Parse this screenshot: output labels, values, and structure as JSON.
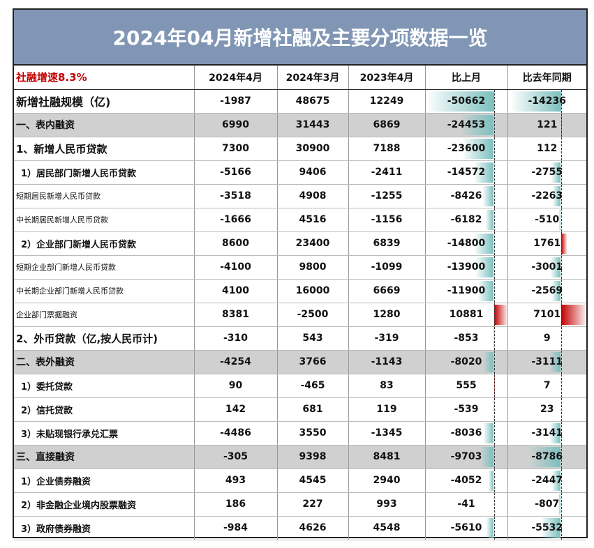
{
  "title": "2024年04月新增社融及主要分项数据一览",
  "headers": [
    "社融增速8.3%",
    "2024年4月",
    "2024年3月",
    "2023年4月",
    "比上月",
    "比去年同期"
  ],
  "rows": [
    {
      "label": "新增社融规模（亿)",
      "style": "big",
      "values": [
        -1987,
        48675,
        12249,
        -50662,
        -14236
      ]
    },
    {
      "label": "一、表内融资",
      "style": "grey",
      "values": [
        6990,
        31443,
        6869,
        -24453,
        121
      ]
    },
    {
      "label": "1、新增人民币贷款",
      "style": "l1",
      "values": [
        7300,
        30900,
        7188,
        -23600,
        112
      ]
    },
    {
      "label": "1）居民部门新增人民币贷款",
      "style": "l2",
      "values": [
        -5166,
        9406,
        -2411,
        -14572,
        -2755
      ]
    },
    {
      "label": "短期居民新增人民币贷款",
      "style": "l3",
      "values": [
        -3518,
        4908,
        -1255,
        -8426,
        -2263
      ]
    },
    {
      "label": "中长期居民新增人民币贷款",
      "style": "l3",
      "values": [
        -1666,
        4516,
        -1156,
        -6182,
        -510
      ]
    },
    {
      "label": "2）企业部门新增人民币贷款",
      "style": "l2",
      "values": [
        8600,
        23400,
        6839,
        -14800,
        1761
      ]
    },
    {
      "label": "短期企业部门新增人民币贷款",
      "style": "l3",
      "values": [
        -4100,
        9800,
        -1099,
        -13900,
        -3001
      ]
    },
    {
      "label": "中长期企业部门新增人民币贷款",
      "style": "l3",
      "values": [
        4100,
        16000,
        6669,
        -11900,
        -2569
      ]
    },
    {
      "label": "企业部门票据融资",
      "style": "l3",
      "values": [
        8381,
        -2500,
        1280,
        10881,
        7101
      ]
    },
    {
      "label": "2、外币贷款（亿,按人民币计)",
      "style": "l1",
      "values": [
        -310,
        543,
        -319,
        -853,
        9
      ]
    },
    {
      "label": "二、表外融资",
      "style": "grey",
      "values": [
        -4254,
        3766,
        -1143,
        -8020,
        -3111
      ]
    },
    {
      "label": "1）委托贷款",
      "style": "l2",
      "values": [
        90,
        -465,
        83,
        555,
        7
      ]
    },
    {
      "label": "2）信托贷款",
      "style": "l2",
      "values": [
        142,
        681,
        119,
        -539,
        23
      ]
    },
    {
      "label": "3）未贴现银行承兑汇票",
      "style": "l2",
      "values": [
        -4486,
        3550,
        -1345,
        -8036,
        -3141
      ]
    },
    {
      "label": "三、直接融资",
      "style": "grey",
      "values": [
        -305,
        9398,
        8481,
        -9703,
        -8786
      ]
    },
    {
      "label": "1）企业债券融资",
      "style": "l2",
      "values": [
        493,
        4545,
        2940,
        -4052,
        -2447
      ]
    },
    {
      "label": "2）非金融企业境内股票融资",
      "style": "l2",
      "values": [
        186,
        227,
        993,
        -41,
        -807
      ]
    },
    {
      "label": "3）政府债券融资",
      "style": "l2",
      "values": [
        -984,
        4626,
        4548,
        -5610,
        -5532
      ]
    }
  ]
}
